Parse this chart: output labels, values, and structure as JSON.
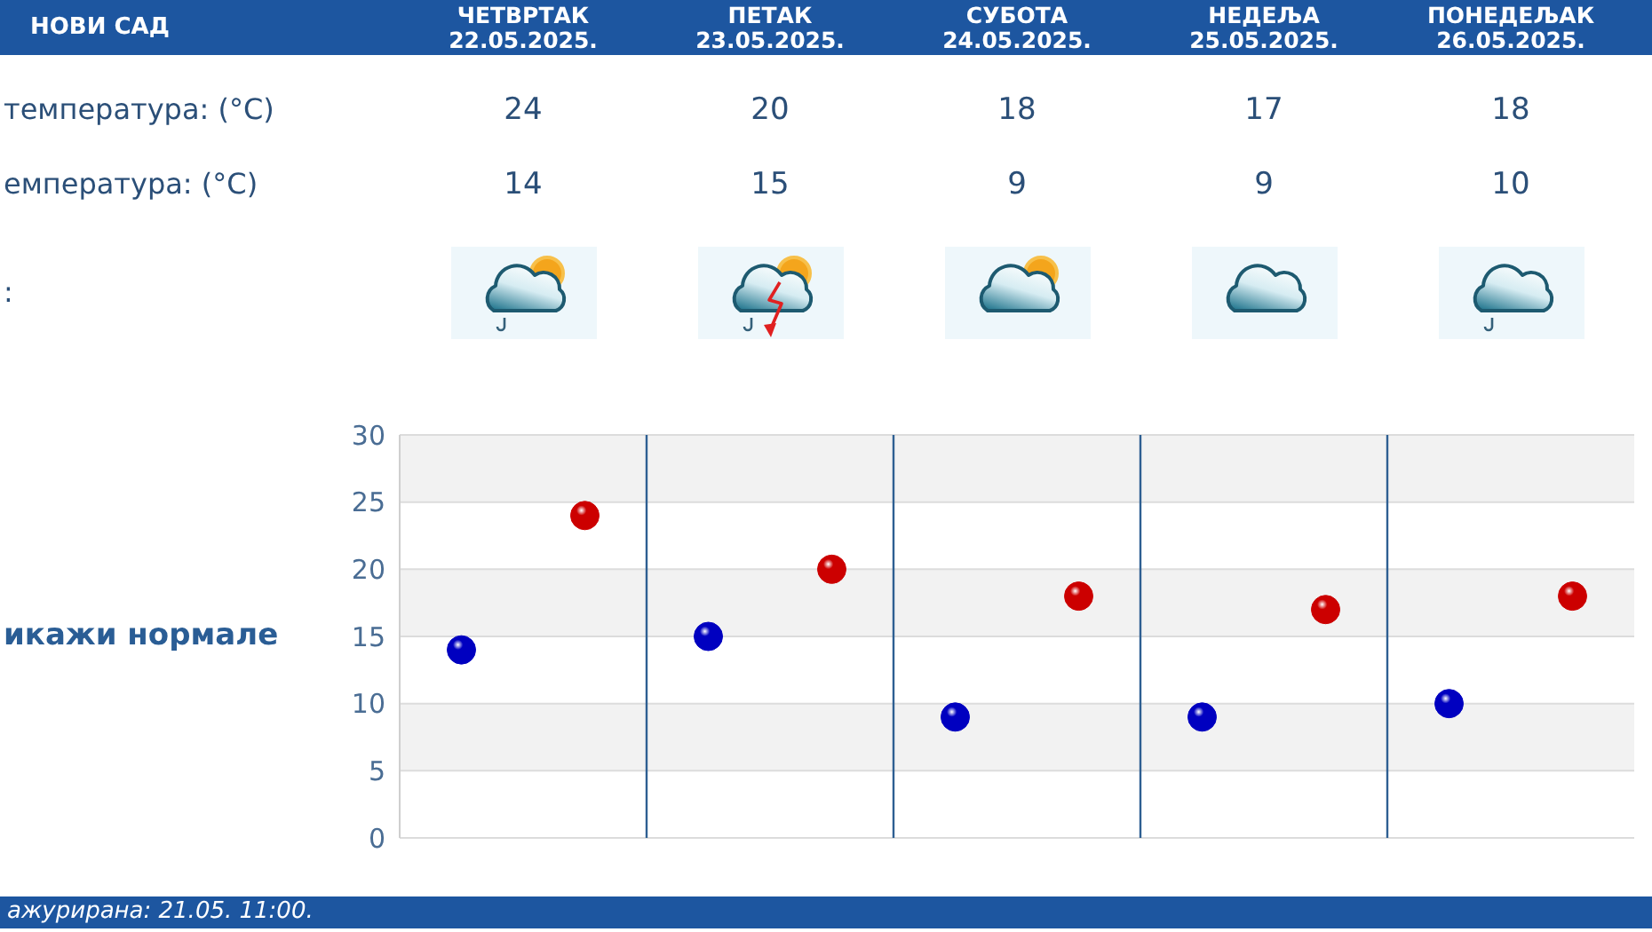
{
  "chart_data": {
    "type": "scatter",
    "title": "НОВИ САД",
    "categories": [
      null,
      null,
      null,
      null,
      null
    ],
    "series": [
      {
        "color": "#cc0000",
        "values": [
          24,
          20,
          18,
          17,
          18
        ]
      },
      {
        "color": "#0000c0",
        "values": [
          14,
          15,
          9,
          9,
          10
        ]
      }
    ],
    "ylim": [
      0,
      30
    ],
    "yticks": [
      0,
      5,
      10,
      15,
      20,
      25,
      30
    ],
    "grid": true,
    "marker": "circle",
    "data_labels": true,
    "annotations": [
      "ЧЕТВРТАК 22.05.2025.",
      "ПЕТАК 23.05.2025.",
      "СУБОТА 24.05.2025.",
      "НЕДЕЉА 25.05.2025.",
      "ПОНЕДЕЉАК 26.05.2025.",
      "температура: (°C)",
      "емпература: (°C)",
      ":",
      "икажи нормале",
      "ажурирана: 21.05. 11:00."
    ]
  }
}
